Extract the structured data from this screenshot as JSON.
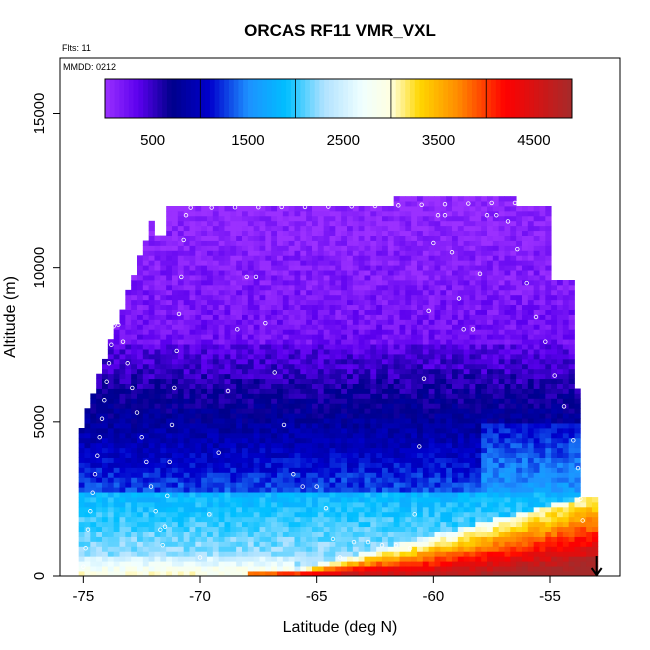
{
  "chart_data": {
    "type": "heatmap",
    "title": "ORCAS RF11 VMR_VXL",
    "subtitle": "Flts: 11",
    "annotation": "MMDD: 0212",
    "xlabel": "Latitude (deg N)",
    "ylabel": "Altitude (m)",
    "xlim": [
      -76,
      -52
    ],
    "ylim": [
      0,
      16800
    ],
    "x_ticks": [
      -75,
      -70,
      -65,
      -60,
      -55
    ],
    "x_tick_labels": [
      "-75",
      "-70",
      "-65",
      "-60",
      "-55"
    ],
    "y_ticks": [
      0,
      5000,
      10000,
      15000
    ],
    "y_tick_labels": [
      "0",
      "5000",
      "10000",
      "15000"
    ],
    "colorbar": {
      "range": [
        0,
        4900
      ],
      "ticks": [
        500,
        1500,
        2500,
        3500,
        4500
      ],
      "tick_labels": [
        "500",
        "1500",
        "2500",
        "3500",
        "4500"
      ],
      "color_stops": [
        {
          "v": 0,
          "c": "#9b30ff"
        },
        {
          "v": 350,
          "c": "#5b00ee"
        },
        {
          "v": 700,
          "c": "#00008b"
        },
        {
          "v": 1100,
          "c": "#0000cd"
        },
        {
          "v": 1500,
          "c": "#1e90ff"
        },
        {
          "v": 1900,
          "c": "#00bfff"
        },
        {
          "v": 2300,
          "c": "#b0e2ff"
        },
        {
          "v": 2700,
          "c": "#f0ffff"
        },
        {
          "v": 3000,
          "c": "#ffffe0"
        },
        {
          "v": 3300,
          "c": "#ffd700"
        },
        {
          "v": 3700,
          "c": "#ff8c00"
        },
        {
          "v": 4200,
          "c": "#ff0000"
        },
        {
          "v": 4900,
          "c": "#a52a2a"
        }
      ]
    },
    "series": [
      {
        "name": "flight-track",
        "points": [
          [
            -75.0,
            300
          ],
          [
            -74.9,
            900
          ],
          [
            -74.8,
            1500
          ],
          [
            -74.7,
            2100
          ],
          [
            -74.6,
            2700
          ],
          [
            -74.5,
            3300
          ],
          [
            -74.4,
            3900
          ],
          [
            -74.3,
            4500
          ],
          [
            -74.2,
            5100
          ],
          [
            -74.1,
            5700
          ],
          [
            -74.0,
            6300
          ],
          [
            -73.9,
            6900
          ],
          [
            -73.8,
            7500
          ],
          [
            -73.7,
            8100
          ],
          [
            -73.5,
            8150
          ],
          [
            -73.3,
            7600
          ],
          [
            -73.1,
            6900
          ],
          [
            -72.9,
            6100
          ],
          [
            -72.7,
            5300
          ],
          [
            -72.5,
            4500
          ],
          [
            -72.3,
            3700
          ],
          [
            -72.1,
            2900
          ],
          [
            -71.9,
            2100
          ],
          [
            -71.7,
            1500
          ],
          [
            -71.6,
            1000
          ],
          [
            -71.5,
            1600
          ],
          [
            -71.4,
            2600
          ],
          [
            -71.3,
            3700
          ],
          [
            -71.2,
            4900
          ],
          [
            -71.1,
            6100
          ],
          [
            -71.0,
            7300
          ],
          [
            -70.9,
            8500
          ],
          [
            -70.8,
            9700
          ],
          [
            -70.7,
            10900
          ],
          [
            -70.6,
            11700
          ],
          [
            -70.4,
            11950
          ],
          [
            -69.5,
            11950
          ],
          [
            -68.5,
            11960
          ],
          [
            -67.5,
            11960
          ],
          [
            -66.5,
            11970
          ],
          [
            -65.5,
            11970
          ],
          [
            -64.5,
            11980
          ],
          [
            -63.5,
            11990
          ],
          [
            -62.5,
            12000
          ],
          [
            -61.5,
            12020
          ],
          [
            -60.5,
            12040
          ],
          [
            -59.5,
            12060
          ],
          [
            -58.5,
            12080
          ],
          [
            -57.5,
            12100
          ],
          [
            -56.5,
            12100
          ],
          [
            -55.5,
            12090
          ],
          [
            -70.0,
            600
          ],
          [
            -69.6,
            2000
          ],
          [
            -69.2,
            4000
          ],
          [
            -68.8,
            6000
          ],
          [
            -68.4,
            8000
          ],
          [
            -68.0,
            9700
          ],
          [
            -67.6,
            9700
          ],
          [
            -67.2,
            8200
          ],
          [
            -66.8,
            6600
          ],
          [
            -66.4,
            4900
          ],
          [
            -66.0,
            3300
          ],
          [
            -65.6,
            2900
          ],
          [
            -65.0,
            2900
          ],
          [
            -64.6,
            2200
          ],
          [
            -64.3,
            1200
          ],
          [
            -64.0,
            600
          ],
          [
            -63.4,
            1100
          ],
          [
            -62.8,
            1100
          ],
          [
            -62.2,
            1000
          ],
          [
            -61.6,
            1000
          ],
          [
            -61.0,
            900
          ],
          [
            -60.8,
            2000
          ],
          [
            -60.6,
            4200
          ],
          [
            -60.4,
            6400
          ],
          [
            -60.2,
            8600
          ],
          [
            -60.0,
            10800
          ],
          [
            -59.8,
            11700
          ],
          [
            -59.5,
            11700
          ],
          [
            -59.2,
            10500
          ],
          [
            -58.9,
            9000
          ],
          [
            -58.7,
            8000
          ],
          [
            -58.3,
            8000
          ],
          [
            -58.0,
            9800
          ],
          [
            -57.7,
            11700
          ],
          [
            -57.3,
            11700
          ],
          [
            -56.8,
            11500
          ],
          [
            -56.4,
            10600
          ],
          [
            -56.0,
            9500
          ],
          [
            -55.6,
            8400
          ],
          [
            -55.2,
            7600
          ],
          [
            -54.8,
            6500
          ],
          [
            -54.4,
            5500
          ],
          [
            -54.0,
            4400
          ],
          [
            -53.8,
            3500
          ],
          [
            -53.7,
            2500
          ],
          [
            -53.6,
            1800
          ]
        ]
      }
    ],
    "arrow_marker": {
      "x": -53.0,
      "y": 0
    }
  }
}
